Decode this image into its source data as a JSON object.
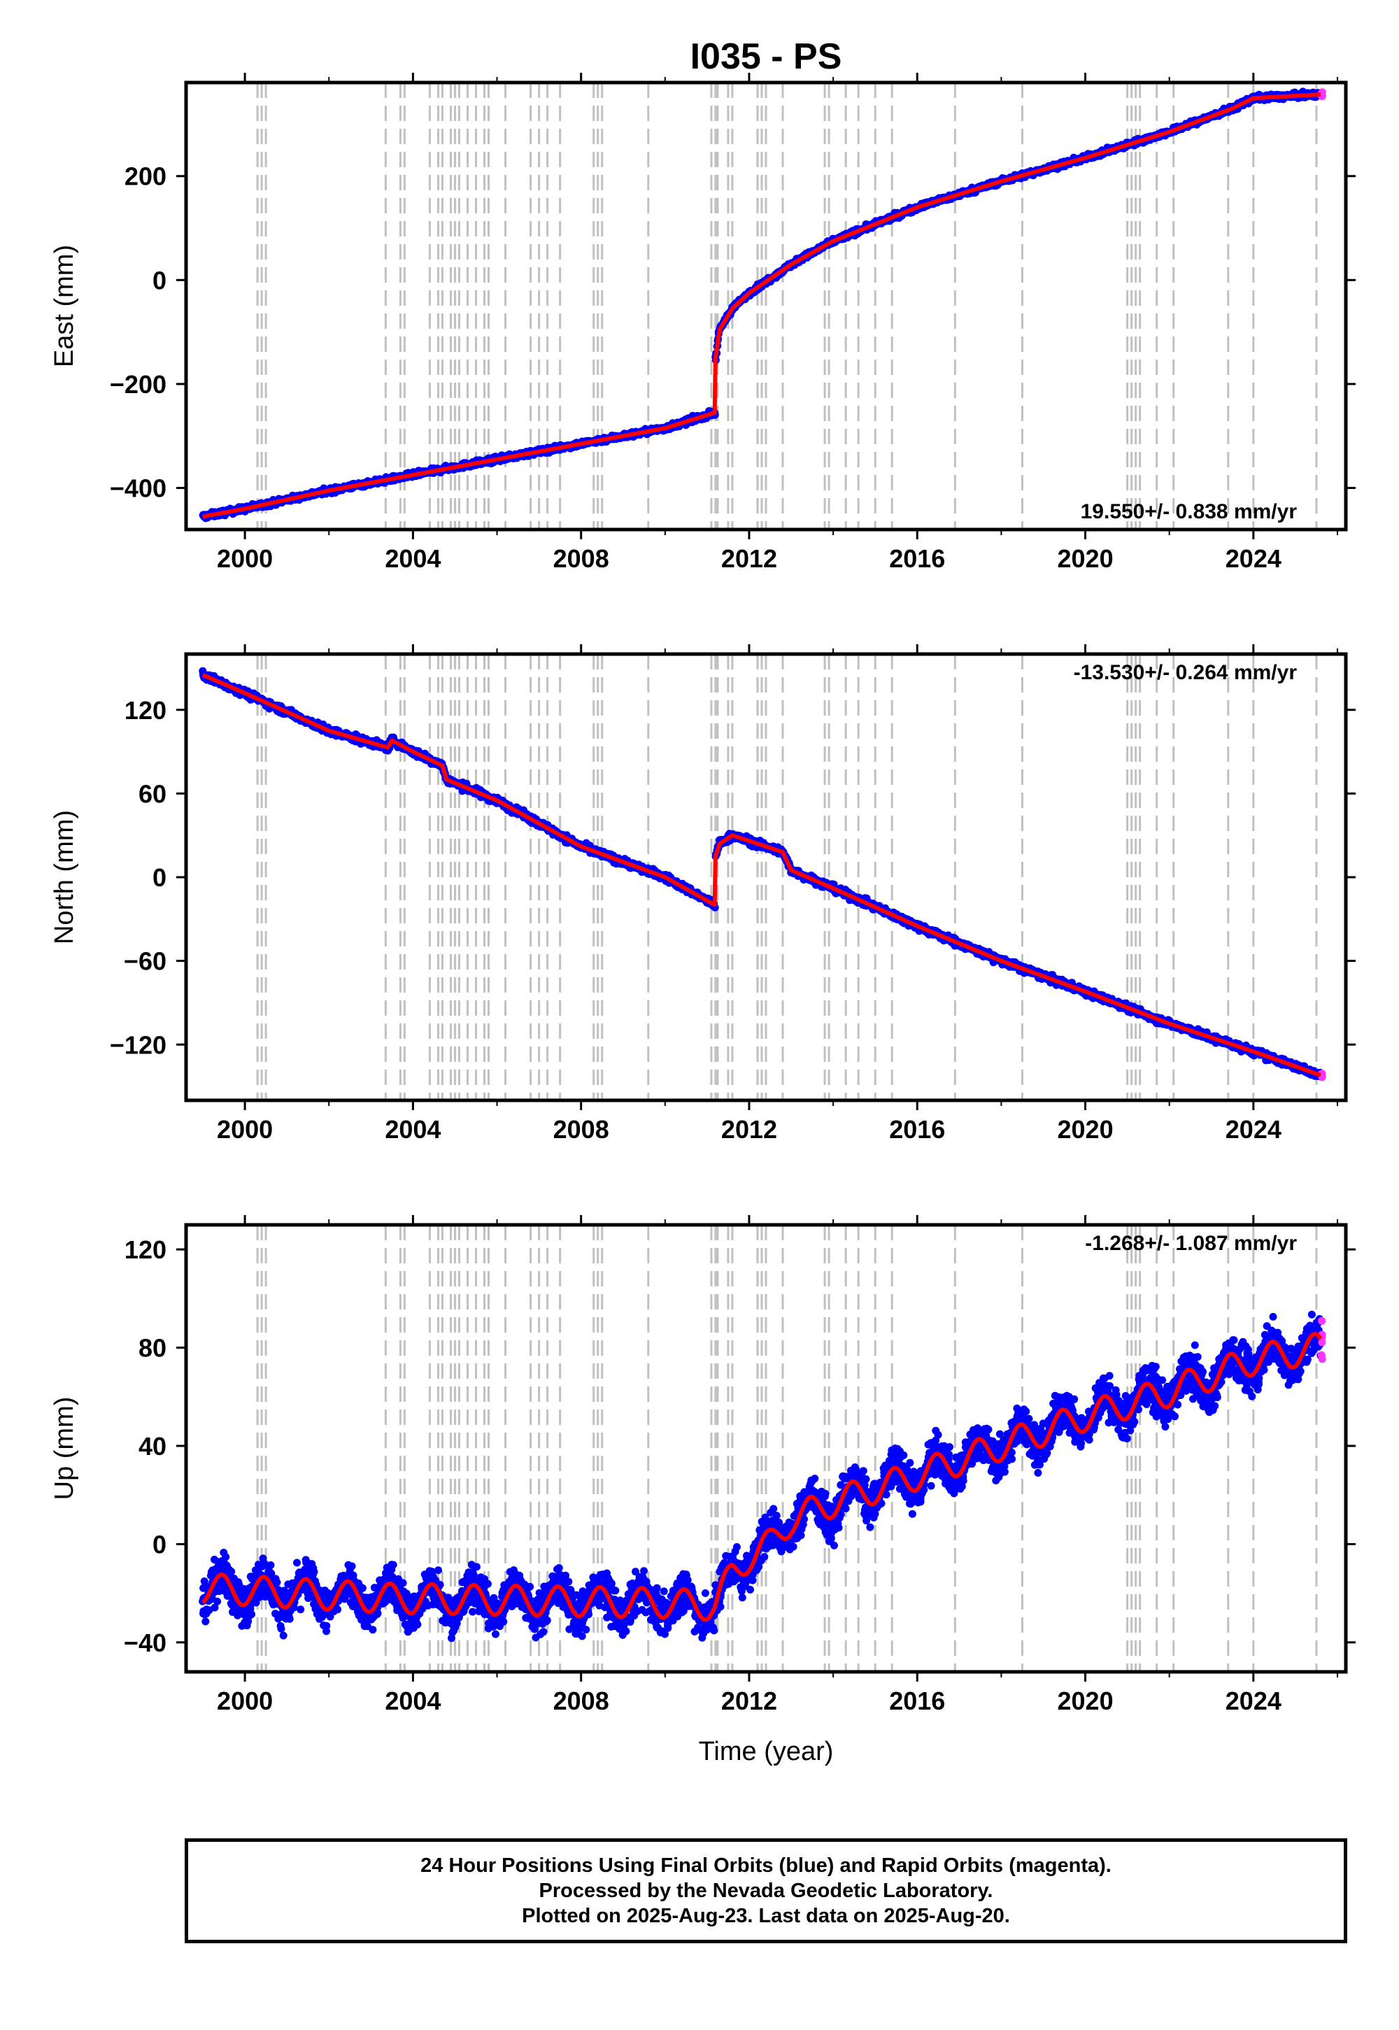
{
  "figure": {
    "title": "I035 - PS",
    "xlabel": "Time (year)"
  },
  "colors": {
    "final_orbits": "#0000ff",
    "rapid_orbits": "#ff33ff",
    "model": "#ff0000",
    "event_lines": "#c0c0c0"
  },
  "chart_data": [
    {
      "type": "scatter",
      "name": "east",
      "ylabel": "East (mm)",
      "rate_label": "19.550+/- 0.838 mm/yr",
      "xlim": [
        1998.6,
        2026.2
      ],
      "ylim": [
        -480,
        380
      ],
      "xticks": [
        2000,
        2004,
        2008,
        2012,
        2016,
        2020,
        2024
      ],
      "xtick_labels": [
        "2000",
        "2004",
        "2008",
        "2012",
        "2016",
        "2020",
        "2024"
      ],
      "yticks": [
        -400,
        -200,
        0,
        200
      ],
      "ytick_labels": [
        "−400",
        "−200",
        "0",
        "200"
      ],
      "model_x": [
        1999.0,
        2000.0,
        2002.0,
        2004.0,
        2006.0,
        2008.0,
        2010.0,
        2011.19,
        2011.2,
        2011.3,
        2011.6,
        2012.0,
        2013.0,
        2014.0,
        2016.0,
        2018.0,
        2020.0,
        2022.0,
        2023.5,
        2024.0,
        2025.6
      ],
      "model_y": [
        -455,
        -440,
        -405,
        -375,
        -345,
        -315,
        -285,
        -255,
        -150,
        -95,
        -55,
        -25,
        30,
        75,
        140,
        190,
        235,
        285,
        330,
        350,
        357
      ],
      "scatter_sigma": 5
    },
    {
      "type": "scatter",
      "name": "north",
      "ylabel": "North (mm)",
      "rate_label": "-13.530+/- 0.264 mm/yr",
      "xlim": [
        1998.6,
        2026.2
      ],
      "ylim": [
        -160,
        160
      ],
      "xticks": [
        2000,
        2004,
        2008,
        2012,
        2016,
        2020,
        2024
      ],
      "xtick_labels": [
        "2000",
        "2004",
        "2008",
        "2012",
        "2016",
        "2020",
        "2024"
      ],
      "yticks": [
        -120,
        -60,
        0,
        60,
        120
      ],
      "ytick_labels": [
        "−120",
        "−60",
        "0",
        "60",
        "120"
      ],
      "model_x": [
        1999.0,
        2000.0,
        2002.0,
        2003.4,
        2003.5,
        2004.0,
        2004.7,
        2004.8,
        2006.0,
        2008.0,
        2010.0,
        2011.19,
        2011.2,
        2011.3,
        2011.6,
        2012.0,
        2012.8,
        2013.0,
        2014.0,
        2016.0,
        2018.0,
        2020.0,
        2022.0,
        2024.0,
        2025.6
      ],
      "model_y": [
        145,
        132,
        105,
        93,
        98,
        90,
        80,
        70,
        55,
        22,
        0,
        -20,
        15,
        24,
        30,
        26,
        18,
        5,
        -8,
        -35,
        -60,
        -82,
        -105,
        -125,
        -142
      ],
      "scatter_sigma": 2.5
    },
    {
      "type": "scatter",
      "name": "up",
      "ylabel": "Up (mm)",
      "rate_label": "-1.268+/- 1.087 mm/yr",
      "xlim": [
        1998.6,
        2026.2
      ],
      "ylim": [
        -52,
        130
      ],
      "xticks": [
        2000,
        2004,
        2008,
        2012,
        2016,
        2020,
        2024
      ],
      "xtick_labels": [
        "2000",
        "2004",
        "2008",
        "2012",
        "2016",
        "2020",
        "2024"
      ],
      "yticks": [
        -40,
        0,
        40,
        80,
        120
      ],
      "ytick_labels": [
        "−40",
        "0",
        "40",
        "80",
        "120"
      ],
      "model_x": [
        1999.0,
        2003.4,
        2010.0,
        2011.19,
        2011.6,
        2012.0,
        2012.5,
        2013.0,
        2014.0,
        2016.0,
        2018.0,
        2020.0,
        2022.0,
        2024.0,
        2025.6
      ],
      "model_y": [
        -18,
        -22,
        -24,
        -25,
        -12,
        -5,
        0,
        10,
        17,
        28,
        40,
        52,
        62,
        75,
        80
      ],
      "seasonal_amplitude": 6,
      "scatter_sigma": 8
    }
  ],
  "event_lines": [
    2000.3,
    2000.4,
    2000.5,
    2003.35,
    2003.7,
    2003.8,
    2004.4,
    2004.6,
    2004.7,
    2004.9,
    2005.0,
    2005.1,
    2005.3,
    2005.5,
    2005.7,
    2005.8,
    2006.2,
    2006.8,
    2007.0,
    2007.2,
    2007.5,
    2008.3,
    2008.4,
    2008.5,
    2009.6,
    2011.1,
    2011.2,
    2011.25,
    2011.5,
    2011.6,
    2012.2,
    2012.3,
    2012.4,
    2012.8,
    2013.8,
    2013.9,
    2014.3,
    2014.6,
    2015.0,
    2015.4,
    2016.9,
    2018.5,
    2021.0,
    2021.1,
    2021.2,
    2021.3,
    2021.7,
    2022.1,
    2023.4,
    2024.0,
    2025.5
  ],
  "caption": {
    "line1": "24 Hour Positions Using Final Orbits (blue) and Rapid Orbits (magenta).",
    "line2": "Processed by the Nevada Geodetic Laboratory.",
    "line3": "Plotted on 2025-Aug-23. Last data on 2025-Aug-20."
  }
}
